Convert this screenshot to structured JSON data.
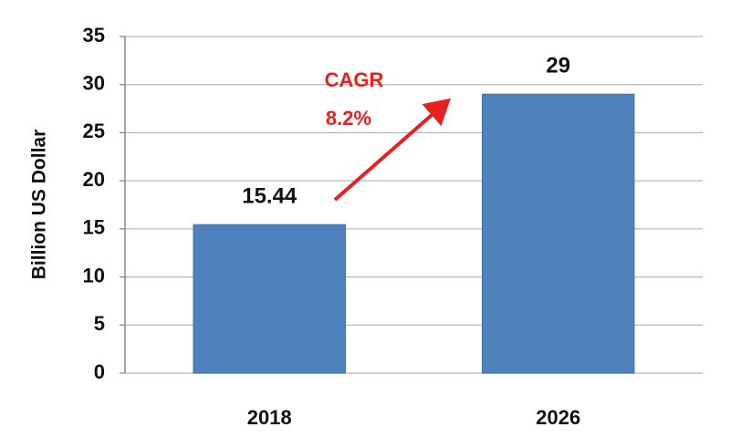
{
  "chart_data": {
    "type": "bar",
    "y_label": "Billion US Dollar",
    "categories": [
      "2018",
      "2026"
    ],
    "values": [
      15.44,
      29
    ],
    "color": "#4f81bd",
    "ylim": [
      0,
      35
    ],
    "yticks": [
      0,
      5,
      10,
      15,
      20,
      25,
      30,
      35
    ],
    "grid": true,
    "annotations": [
      "CAGR",
      "8.2%"
    ],
    "annotation_color": "#e8201f"
  }
}
